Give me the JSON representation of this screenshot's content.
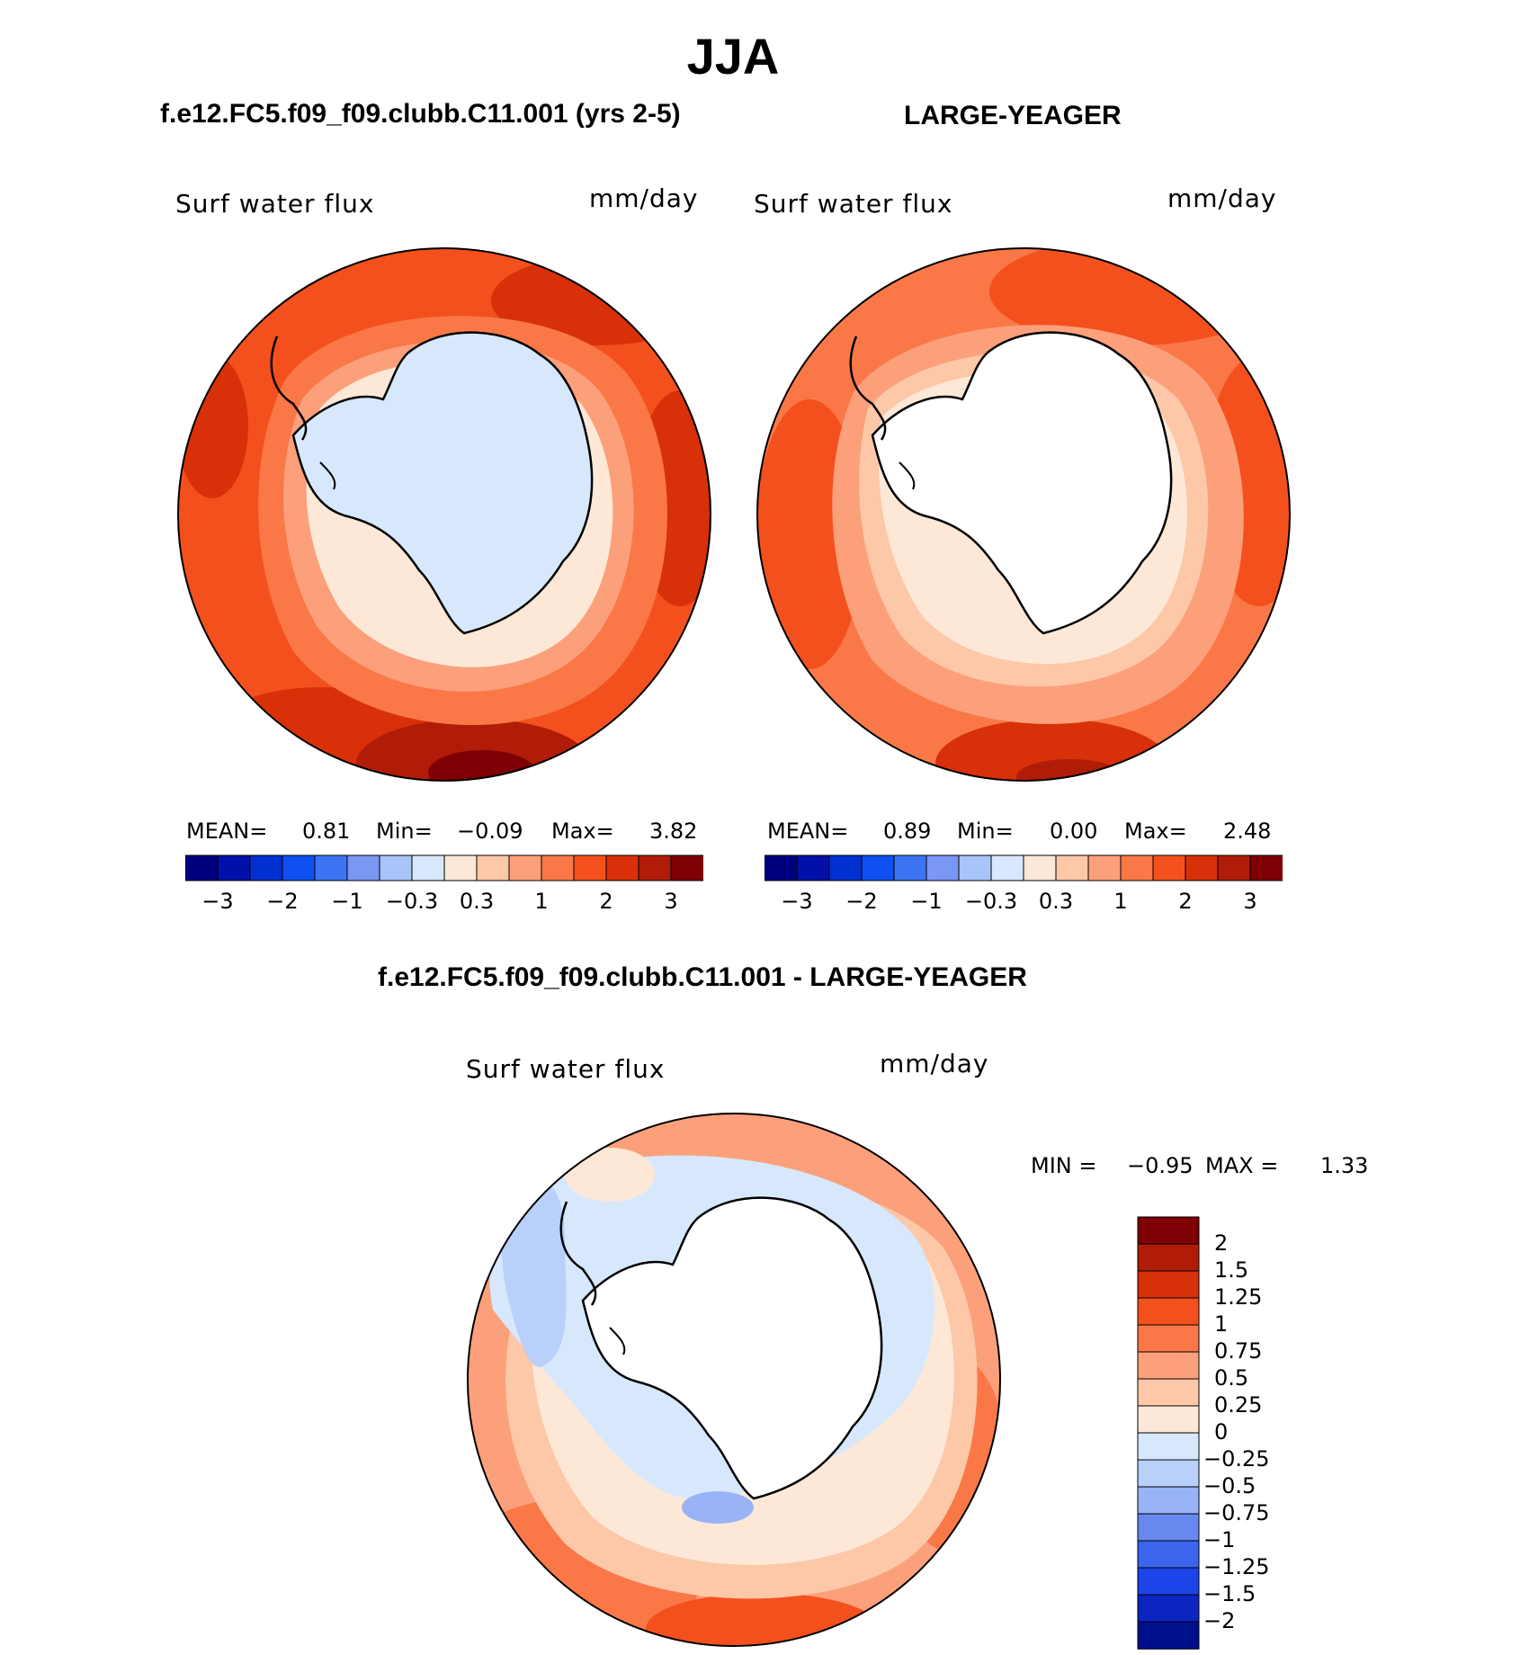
{
  "title": "JJA",
  "panels": {
    "left": {
      "case": "f.e12.FC5.f09_f09.clubb.C11.001 (yrs 2-5)",
      "variable": "Surf water flux",
      "units": "mm/day",
      "stats": {
        "mean_label": "MEAN=",
        "mean": "0.81",
        "min_label": "Min=",
        "min": "−0.09",
        "max_label": "Max=",
        "max": "3.82"
      }
    },
    "right": {
      "case": "LARGE-YEAGER",
      "variable": "Surf water flux",
      "units": "mm/day",
      "stats": {
        "mean_label": "MEAN=",
        "mean": "0.89",
        "min_label": "Min=",
        "min": "0.00",
        "max_label": "Max=",
        "max": "2.48"
      }
    },
    "diff": {
      "case": "f.e12.FC5.f09_f09.clubb.C11.001 - LARGE-YEAGER",
      "variable": "Surf water flux",
      "units": "mm/day",
      "stats": {
        "min_label": "MIN =",
        "min": "−0.95",
        "max_label": "MAX =",
        "max": "1.33"
      }
    }
  },
  "colorbar_main": {
    "colors": [
      "#00007f",
      "#0010a8",
      "#0030d0",
      "#1050f0",
      "#3c74f4",
      "#7898f4",
      "#a8c4f8",
      "#d8e8fc",
      "#fde8d8",
      "#fcc8a8",
      "#fca07c",
      "#fa7848",
      "#f4501e",
      "#d83008",
      "#b01c08",
      "#7e0004"
    ],
    "tick_labels": [
      "−3",
      "−2",
      "−1",
      "−0.3",
      "0.3",
      "1",
      "2",
      "3"
    ]
  },
  "colorbar_diff": {
    "colors": [
      "#7e0004",
      "#b01c08",
      "#d83008",
      "#f4501e",
      "#fa7848",
      "#fca07c",
      "#fcc8a8",
      "#fde8d8",
      "#d8e8fc",
      "#b8d0fa",
      "#98b4f6",
      "#6888f0",
      "#3c64ec",
      "#1c44e8",
      "#0c24c0",
      "#00108c"
    ],
    "tick_labels": [
      "2",
      "1.5",
      "1.25",
      "1",
      "0.75",
      "0.5",
      "0.25",
      "0",
      "−0.25",
      "−0.5",
      "−0.75",
      "−1",
      "−1.25",
      "−1.5",
      "−2"
    ]
  }
}
